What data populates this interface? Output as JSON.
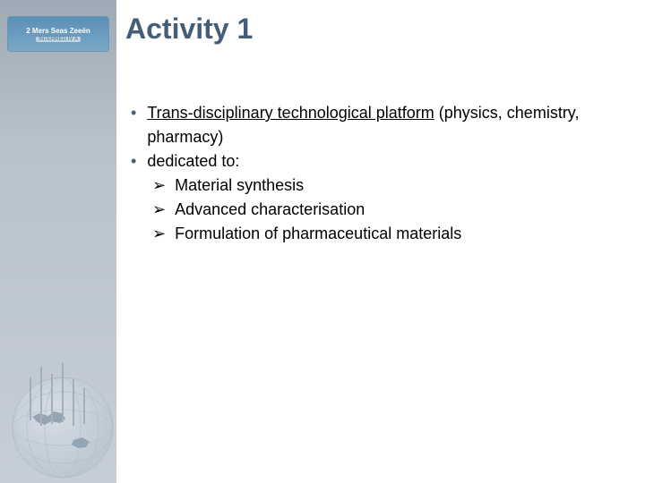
{
  "logo": {
    "line1": "2 Mers Seas Zeeën",
    "line2": "INTERREG IV A"
  },
  "title": "Activity 1",
  "bullets": [
    {
      "type": "bullet",
      "runs": [
        {
          "text": "Trans-disciplinary technological platform",
          "underline": true
        },
        {
          "text": " (physics, chemistry, pharmacy)",
          "underline": false
        }
      ],
      "sub": []
    },
    {
      "type": "bullet",
      "runs": [
        {
          "text": "dedicated to:",
          "underline": false
        }
      ],
      "sub": [
        "Material synthesis",
        "Advanced characterisation",
        "Formulation of pharmaceutical materials"
      ]
    }
  ],
  "style": {
    "sidebar_gradient_top": "#9eaab5",
    "sidebar_gradient_bottom": "#c5ced6",
    "title_color": "#445e78",
    "bullet_marker_color": "#445e78",
    "arrow_marker": "➢",
    "bullet_marker": "•",
    "title_fontsize": 32,
    "body_fontsize": 18
  }
}
